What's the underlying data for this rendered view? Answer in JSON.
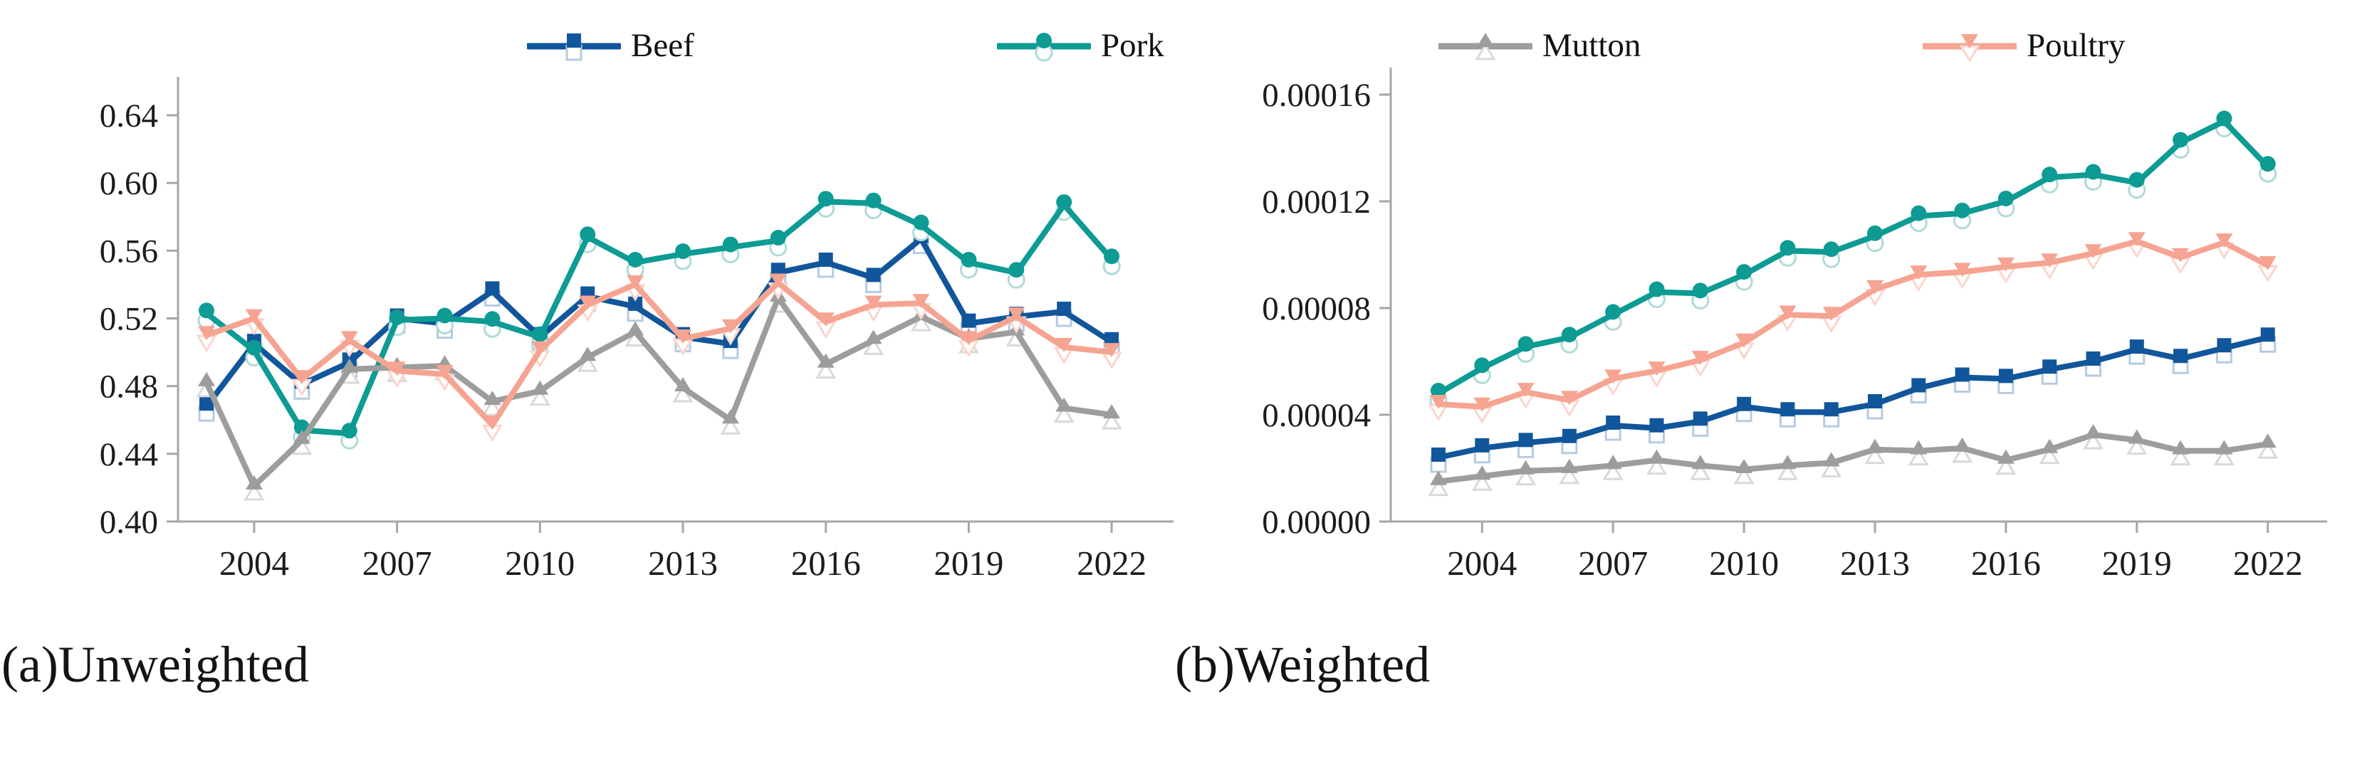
{
  "panels": [
    {
      "id": "a",
      "caption": "(a)Unweighted"
    },
    {
      "id": "b",
      "caption": "(b)Weighted"
    }
  ],
  "legend": {
    "items": [
      {
        "label": "Beef",
        "color": "#11569b",
        "light_color": "#b5cbe2",
        "marker": "square"
      },
      {
        "label": "Pork",
        "color": "#0d9b94",
        "light_color": "#aedbd8",
        "marker": "circle"
      },
      {
        "label": "Mutton",
        "color": "#9d9d9c",
        "light_color": "#d9d9d9",
        "marker": "triangle-up"
      },
      {
        "label": "Poultry",
        "color": "#f6a492",
        "light_color": "#fbd5cc",
        "marker": "triangle-down"
      }
    ]
  },
  "colors": {
    "axis": "#a6a6a6",
    "tick_text": "#1c1c1c",
    "background": "#ffffff"
  },
  "chart_data": [
    {
      "type": "line",
      "title": "(a)Unweighted",
      "xlabel": "",
      "ylabel": "",
      "grid": false,
      "legend_position": "top",
      "x": [
        2003,
        2004,
        2005,
        2006,
        2007,
        2008,
        2009,
        2010,
        2011,
        2012,
        2013,
        2014,
        2015,
        2016,
        2017,
        2018,
        2019,
        2020,
        2021,
        2022
      ],
      "xticks": [
        2004,
        2007,
        2010,
        2013,
        2016,
        2019,
        2022
      ],
      "ylim": [
        0.4,
        0.664
      ],
      "yticks": [
        0.4,
        0.44,
        0.48,
        0.52,
        0.56,
        0.6,
        0.64
      ],
      "ytick_labels": [
        "0.40",
        "0.44",
        "0.48",
        "0.52",
        "0.56",
        "0.60",
        "0.64"
      ],
      "series": [
        {
          "name": "Beef",
          "values": [
            0.468,
            0.505,
            0.481,
            0.494,
            0.52,
            0.517,
            0.536,
            0.509,
            0.533,
            0.527,
            0.509,
            0.505,
            0.547,
            0.553,
            0.544,
            0.567,
            0.517,
            0.521,
            0.524,
            0.506
          ]
        },
        {
          "name": "Pork",
          "values": [
            0.523,
            0.501,
            0.454,
            0.452,
            0.519,
            0.52,
            0.518,
            0.509,
            0.568,
            0.553,
            0.558,
            0.562,
            0.566,
            0.589,
            0.588,
            0.575,
            0.553,
            0.547,
            0.587,
            0.555
          ]
        },
        {
          "name": "Mutton",
          "values": [
            0.482,
            0.421,
            0.448,
            0.49,
            0.491,
            0.492,
            0.471,
            0.477,
            0.497,
            0.512,
            0.479,
            0.46,
            0.532,
            0.493,
            0.507,
            0.521,
            0.508,
            0.512,
            0.467,
            0.463
          ]
        },
        {
          "name": "Poultry",
          "values": [
            0.51,
            0.52,
            0.484,
            0.507,
            0.489,
            0.487,
            0.457,
            0.501,
            0.528,
            0.54,
            0.508,
            0.514,
            0.541,
            0.518,
            0.528,
            0.529,
            0.507,
            0.521,
            0.503,
            0.5
          ]
        }
      ]
    },
    {
      "type": "line",
      "title": "(b)Weighted",
      "xlabel": "",
      "ylabel": "",
      "grid": false,
      "legend_position": "top",
      "x": [
        2003,
        2004,
        2005,
        2006,
        2007,
        2008,
        2009,
        2010,
        2011,
        2012,
        2013,
        2014,
        2015,
        2016,
        2017,
        2018,
        2019,
        2020,
        2021,
        2022
      ],
      "xticks": [
        2004,
        2007,
        2010,
        2013,
        2016,
        2019,
        2022
      ],
      "ylim": [
        0.0,
        0.00017
      ],
      "yticks": [
        0.0,
        4e-05,
        8e-05,
        0.00012,
        0.00016
      ],
      "ytick_labels": [
        "0.00000",
        "0.00004",
        "0.00008",
        "0.00012",
        "0.00016"
      ],
      "series": [
        {
          "name": "Beef",
          "values": [
            2.4e-05,
            2.75e-05,
            2.95e-05,
            3.1e-05,
            3.6e-05,
            3.5e-05,
            3.75e-05,
            4.3e-05,
            4.1e-05,
            4.1e-05,
            4.4e-05,
            5e-05,
            5.4e-05,
            5.35e-05,
            5.7e-05,
            6e-05,
            6.45e-05,
            6.1e-05,
            6.5e-05,
            6.9e-05
          ]
        },
        {
          "name": "Pork",
          "values": [
            4.8e-05,
            5.75e-05,
            6.55e-05,
            6.9e-05,
            7.75e-05,
            8.6e-05,
            8.55e-05,
            9.25e-05,
            0.0001015,
            0.000101,
            0.000107,
            0.0001145,
            0.0001155,
            0.00012,
            0.000129,
            0.00013,
            0.000127,
            0.000142,
            0.00015,
            0.000133
          ]
        },
        {
          "name": "Mutton",
          "values": [
            1.5e-05,
            1.7e-05,
            1.9e-05,
            1.95e-05,
            2.1e-05,
            2.3e-05,
            2.1e-05,
            1.95e-05,
            2.1e-05,
            2.2e-05,
            2.7e-05,
            2.65e-05,
            2.75e-05,
            2.3e-05,
            2.7e-05,
            3.25e-05,
            3.05e-05,
            2.65e-05,
            2.65e-05,
            2.9e-05
          ]
        },
        {
          "name": "Poultry",
          "values": [
            4.4e-05,
            4.3e-05,
            4.85e-05,
            4.55e-05,
            5.35e-05,
            5.65e-05,
            6.05e-05,
            6.7e-05,
            7.75e-05,
            7.7e-05,
            8.7e-05,
            9.25e-05,
            9.35e-05,
            9.55e-05,
            9.7e-05,
            0.0001005,
            0.000105,
            9.9e-05,
            0.0001045,
            9.6e-05
          ]
        }
      ]
    }
  ]
}
